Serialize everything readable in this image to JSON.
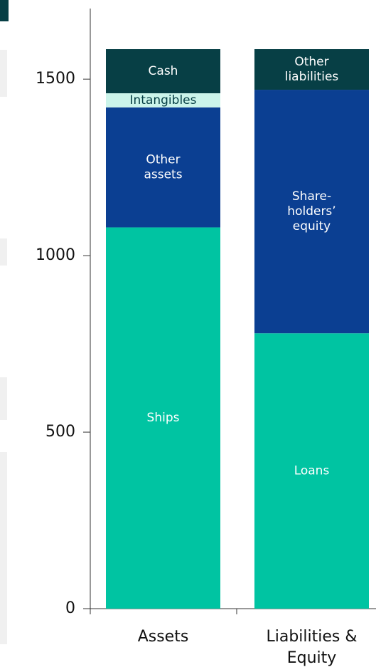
{
  "chart_data": {
    "type": "stacked_bar",
    "categories": [
      "Assets",
      "Liabilities & Equity"
    ],
    "series": [
      {
        "name": "Ships",
        "color": "#00c4a2",
        "values": [
          1080,
          null
        ]
      },
      {
        "name": "Other assets",
        "color": "#0b3f92",
        "values": [
          340,
          null
        ]
      },
      {
        "name": "Intangibles",
        "color": "#cbf4ea",
        "values": [
          40,
          null
        ]
      },
      {
        "name": "Cash",
        "color": "#073f45",
        "values": [
          125,
          null
        ]
      },
      {
        "name": "Loans",
        "color": "#00c4a2",
        "values": [
          null,
          780
        ]
      },
      {
        "name": "Share-holders’ equity",
        "color": "#0b3f92",
        "values": [
          null,
          690
        ]
      },
      {
        "name": "Other liabilities",
        "color": "#073f45",
        "values": [
          null,
          115
        ]
      }
    ],
    "ylim": [
      0,
      1700
    ],
    "yticks": [
      0,
      500,
      1000,
      1500
    ]
  }
}
